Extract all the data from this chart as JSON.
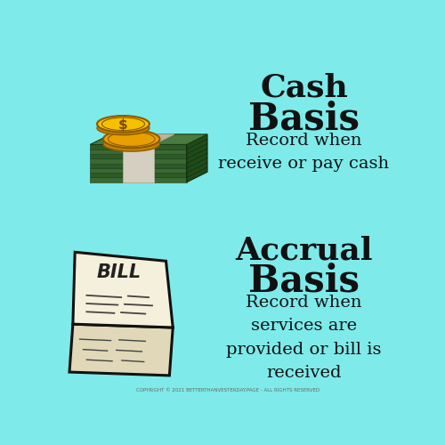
{
  "background_color": "#7EEAEA",
  "title1_line1": "Cash",
  "title1_line2": "Basis",
  "desc1": "Record when\nreceive or pay cash",
  "title2_line1": "Accrual",
  "title2_line2": "Basis",
  "desc2": "Record when\nservices are\nprovided or bill is\nreceived",
  "title_fontsize": 26,
  "basis_fontsize": 30,
  "desc_fontsize": 14,
  "text_color": "#111111",
  "coin_gold": "#E8A000",
  "coin_dark_gold": "#B87000",
  "coin_highlight": "#F5C000",
  "coin_rim": "#C88000",
  "money_green_dark": "#2d5a27",
  "money_green_mid": "#4a7a40",
  "money_green_light": "#3a6a32",
  "money_band": "#d4cfc0",
  "money_band_dark": "#b8b4a0",
  "bill_paper": "#f5f0dc",
  "bill_paper_dark": "#e0d8b8",
  "bill_outline": "#111111",
  "copyright": "COPYRIGHT © 2021 BETTERTHANVESTERDAY.PAGE - ALL RIGHTS RESERVED"
}
